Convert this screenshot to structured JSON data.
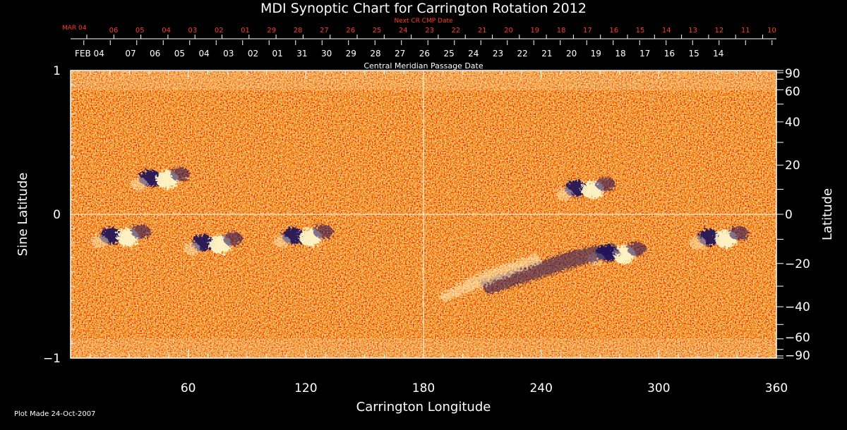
{
  "chart_data": {
    "type": "heatmap",
    "title": "MDI Synoptic Chart for Carrington Rotation 2012",
    "xlabel": "Carrington Longitude",
    "ylabel_left": "Sine Latitude",
    "ylabel_right": "Latitude",
    "xlim": [
      0,
      360
    ],
    "ylim": [
      -1,
      1
    ],
    "x_ticks": [
      60,
      120,
      180,
      240,
      300,
      360
    ],
    "y_ticks_left": [
      {
        "value": 1,
        "label": "1"
      },
      {
        "value": 0,
        "label": "0"
      },
      {
        "value": -1,
        "label": "−1"
      }
    ],
    "y_ticks_right": [
      {
        "deg": 90,
        "label": "90"
      },
      {
        "deg": 60,
        "label": "60"
      },
      {
        "deg": 40,
        "label": "40"
      },
      {
        "deg": 20,
        "label": "20"
      },
      {
        "deg": 0,
        "label": "0"
      },
      {
        "deg": -20,
        "label": "−20"
      },
      {
        "deg": -40,
        "label": "−40"
      },
      {
        "deg": -60,
        "label": "−60"
      },
      {
        "deg": -90,
        "label": "−90"
      }
    ],
    "grid": "lines at longitude 180 and sine latitude 0",
    "next_cr": {
      "label": "Next CR CMP Date",
      "month_label": "MAR 04",
      "days": [
        "06",
        "05",
        "04",
        "03",
        "02",
        "01",
        "29",
        "28",
        "27",
        "26",
        "25",
        "24",
        "23",
        "22",
        "21",
        "20",
        "19",
        "18",
        "17",
        "16",
        "15",
        "14",
        "13",
        "12",
        "11",
        "10"
      ]
    },
    "cmp": {
      "label": "Central Meridian Passage Date",
      "month_label": "FEB 04",
      "days": [
        "07",
        "06",
        "05",
        "04",
        "03",
        "02",
        "01",
        "31",
        "30",
        "29",
        "28",
        "27",
        "26",
        "25",
        "24",
        "23",
        "22",
        "21",
        "20",
        "19",
        "18",
        "17",
        "16",
        "15",
        "14"
      ]
    },
    "colors": {
      "background": "#e8561e",
      "positive": "#fff6c8",
      "negative": "#1a0a5a",
      "next_cr_text": "#ff3c1e"
    },
    "active_regions": [
      {
        "lon": 45,
        "sinlat": 0.25,
        "polarity": "mixed"
      },
      {
        "lon": 25,
        "sinlat": -0.15,
        "polarity": "mixed"
      },
      {
        "lon": 72,
        "sinlat": -0.2,
        "polarity": "mixed"
      },
      {
        "lon": 118,
        "sinlat": -0.15,
        "polarity": "mixed"
      },
      {
        "lon": 262,
        "sinlat": 0.18,
        "polarity": "mixed"
      },
      {
        "lon": 278,
        "sinlat": -0.27,
        "polarity": "mixed"
      },
      {
        "lon": 330,
        "sinlat": -0.16,
        "polarity": "mixed"
      }
    ]
  },
  "footer": {
    "plot_made": "Plot Made 24-Oct-2007"
  }
}
